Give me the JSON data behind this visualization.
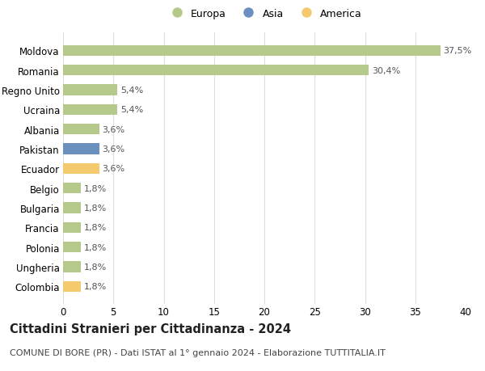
{
  "categories": [
    "Moldova",
    "Romania",
    "Regno Unito",
    "Ucraina",
    "Albania",
    "Pakistan",
    "Ecuador",
    "Belgio",
    "Bulgaria",
    "Francia",
    "Polonia",
    "Ungheria",
    "Colombia"
  ],
  "values": [
    37.5,
    30.4,
    5.4,
    5.4,
    3.6,
    3.6,
    3.6,
    1.8,
    1.8,
    1.8,
    1.8,
    1.8,
    1.8
  ],
  "bar_colors": [
    "#b5c98a",
    "#b5c98a",
    "#b5c98a",
    "#b5c98a",
    "#b5c98a",
    "#6b8fbf",
    "#f5c96e",
    "#b5c98a",
    "#b5c98a",
    "#b5c98a",
    "#b5c98a",
    "#b5c98a",
    "#f5c96e"
  ],
  "legend_labels": [
    "Europa",
    "Asia",
    "America"
  ],
  "legend_colors": [
    "#b5c98a",
    "#6b8fbf",
    "#f5c96e"
  ],
  "title": "Cittadini Stranieri per Cittadinanza - 2024",
  "subtitle": "COMUNE DI BORE (PR) - Dati ISTAT al 1° gennaio 2024 - Elaborazione TUTTITALIA.IT",
  "xlim": [
    0,
    40
  ],
  "xticks": [
    0,
    5,
    10,
    15,
    20,
    25,
    30,
    35,
    40
  ],
  "bg_color": "#ffffff",
  "grid_color": "#dddddd",
  "bar_label_fontsize": 8,
  "title_fontsize": 10.5,
  "subtitle_fontsize": 8,
  "tick_fontsize": 8.5,
  "legend_fontsize": 9,
  "bar_height": 0.55
}
